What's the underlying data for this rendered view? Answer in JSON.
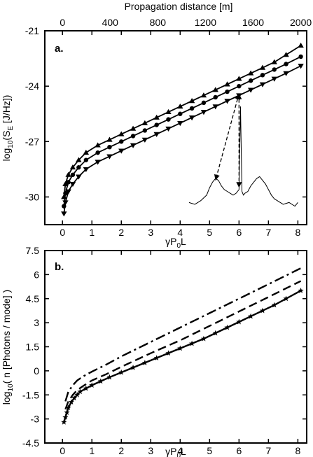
{
  "chart_data": [
    {
      "type": "line",
      "panel_label": "a.",
      "xlabel_main": "γP",
      "xlabel_sub": "0",
      "xlabel_tail": "L",
      "ylabel_pre": "log",
      "ylabel_sub": "10",
      "ylabel_mid": "(S",
      "ylabel_sub2": "E",
      "ylabel_tail": " [J/Hz])",
      "top_axis_label": "Propagation distance [m]",
      "xlim": [
        -0.6,
        8.3
      ],
      "ylim": [
        -31.5,
        -21
      ],
      "x_ticks": [
        "0",
        "1",
        "2",
        "3",
        "4",
        "5",
        "6",
        "7",
        "8"
      ],
      "y_ticks": [
        "-21",
        "-24",
        "-27",
        "-30"
      ],
      "top_ticks": [
        "0",
        "400",
        "800",
        "1200",
        "1600",
        "2000"
      ],
      "top_ticks_pos": [
        0,
        1.62,
        3.24,
        4.86,
        6.48,
        8.1
      ],
      "series": [
        {
          "marker": "triangle-up",
          "x": [
            0.05,
            0.1,
            0.2,
            0.35,
            0.55,
            0.8,
            1.2,
            1.6,
            2.0,
            2.4,
            2.8,
            3.2,
            3.6,
            4.0,
            4.4,
            4.8,
            5.2,
            5.6,
            6.0,
            6.4,
            6.8,
            7.2,
            7.6,
            8.1
          ],
          "y": [
            -30.0,
            -29.3,
            -28.8,
            -28.4,
            -28.0,
            -27.6,
            -27.2,
            -26.9,
            -26.6,
            -26.3,
            -26.0,
            -25.7,
            -25.4,
            -25.1,
            -24.8,
            -24.5,
            -24.2,
            -23.9,
            -23.6,
            -23.3,
            -23.0,
            -22.7,
            -22.3,
            -21.8
          ]
        },
        {
          "marker": "circle",
          "x": [
            0.05,
            0.1,
            0.2,
            0.35,
            0.55,
            0.8,
            1.2,
            1.6,
            2.0,
            2.4,
            2.8,
            3.2,
            3.6,
            4.0,
            4.4,
            4.8,
            5.2,
            5.6,
            6.0,
            6.4,
            6.8,
            7.2,
            7.6,
            8.1
          ],
          "y": [
            -30.5,
            -29.8,
            -29.2,
            -28.8,
            -28.4,
            -28.0,
            -27.6,
            -27.3,
            -27.0,
            -26.7,
            -26.4,
            -26.1,
            -25.8,
            -25.5,
            -25.2,
            -24.9,
            -24.6,
            -24.3,
            -24.0,
            -23.7,
            -23.4,
            -23.1,
            -22.8,
            -22.4
          ]
        },
        {
          "marker": "triangle-down",
          "x": [
            0.05,
            0.1,
            0.2,
            0.35,
            0.55,
            0.8,
            1.2,
            1.6,
            2.0,
            2.4,
            2.8,
            3.2,
            3.6,
            4.0,
            4.4,
            4.8,
            5.2,
            5.6,
            6.0,
            6.4,
            6.8,
            7.2,
            7.6,
            8.1
          ],
          "y": [
            -30.9,
            -30.3,
            -29.7,
            -29.3,
            -28.9,
            -28.5,
            -28.1,
            -27.8,
            -27.5,
            -27.2,
            -26.9,
            -26.6,
            -26.3,
            -26.0,
            -25.7,
            -25.4,
            -25.1,
            -24.8,
            -24.5,
            -24.2,
            -23.9,
            -23.6,
            -23.3,
            -22.9
          ]
        }
      ],
      "inset": {
        "x": [
          4.3,
          4.5,
          4.7,
          4.9,
          5.0,
          5.1,
          5.2,
          5.3,
          5.4,
          5.5,
          5.6,
          5.7,
          5.8,
          5.9,
          6.0,
          6.05,
          6.1,
          6.15,
          6.2,
          6.3,
          6.4,
          6.5,
          6.6,
          6.7,
          6.8,
          6.9,
          7.0,
          7.1,
          7.2,
          7.3,
          7.5,
          7.7,
          7.9,
          8.0
        ],
        "y": [
          -30.3,
          -30.4,
          -30.2,
          -29.9,
          -29.5,
          -29.2,
          -29.0,
          -29.1,
          -29.4,
          -29.6,
          -29.7,
          -29.8,
          -29.9,
          -29.8,
          -29.6,
          -25.1,
          -29.7,
          -29.9,
          -29.8,
          -29.7,
          -29.4,
          -29.2,
          -29.0,
          -28.9,
          -29.1,
          -29.3,
          -29.6,
          -29.9,
          -30.1,
          -30.2,
          -30.4,
          -30.3,
          -30.5,
          -30.3
        ]
      },
      "annotation": {
        "from_x": 6.0,
        "from_y": -24.4,
        "to_left_x": 5.2,
        "to_left_y": -29.1,
        "to_right_x": 6.0,
        "to_right_y": -29.5
      }
    },
    {
      "type": "line",
      "panel_label": "b.",
      "xlabel_main": "γP",
      "xlabel_sub": "0",
      "xlabel_tail": "L",
      "ylabel_pre": "log",
      "ylabel_sub": "10",
      "ylabel_mid": "( n [Photons / mode] )",
      "xlim": [
        -0.6,
        8.3
      ],
      "ylim": [
        -4.5,
        7.5
      ],
      "x_ticks": [
        "0",
        "1",
        "2",
        "3",
        "4",
        "5",
        "6",
        "7",
        "8"
      ],
      "y_ticks": [
        "7.5",
        "6",
        "4.5",
        "3",
        "1.5",
        "0",
        "-1.5",
        "-3",
        "-4.5"
      ],
      "series": [
        {
          "style": "dash-dot",
          "x": [
            0.1,
            0.2,
            0.35,
            0.5,
            0.7,
            1.0,
            1.5,
            2.0,
            3.0,
            4.0,
            5.0,
            6.0,
            7.0,
            8.1
          ],
          "y": [
            -1.9,
            -1.3,
            -0.9,
            -0.6,
            -0.35,
            -0.05,
            0.4,
            0.9,
            1.8,
            2.7,
            3.6,
            4.5,
            5.4,
            6.4
          ]
        },
        {
          "style": "dashed",
          "x": [
            0.1,
            0.2,
            0.35,
            0.5,
            0.7,
            1.0,
            1.5,
            2.0,
            3.0,
            4.0,
            5.0,
            6.0,
            7.0,
            8.1
          ],
          "y": [
            -2.4,
            -1.9,
            -1.5,
            -1.2,
            -0.95,
            -0.6,
            -0.2,
            0.25,
            1.1,
            1.9,
            2.8,
            3.7,
            4.6,
            5.6
          ]
        },
        {
          "style": "solid-star",
          "x": [
            0.05,
            0.1,
            0.15,
            0.2,
            0.3,
            0.4,
            0.5,
            0.6,
            0.8,
            1.0,
            1.3,
            1.6,
            2.0,
            2.4,
            2.8,
            3.2,
            3.6,
            4.0,
            4.4,
            4.8,
            5.2,
            5.6,
            6.0,
            6.4,
            6.8,
            7.2,
            7.6,
            8.1
          ],
          "y": [
            -3.2,
            -2.9,
            -2.6,
            -2.3,
            -1.95,
            -1.7,
            -1.5,
            -1.3,
            -1.1,
            -0.9,
            -0.65,
            -0.4,
            -0.1,
            0.2,
            0.5,
            0.8,
            1.1,
            1.4,
            1.7,
            2.0,
            2.35,
            2.7,
            3.05,
            3.4,
            3.75,
            4.1,
            4.5,
            5.0
          ]
        }
      ]
    }
  ]
}
